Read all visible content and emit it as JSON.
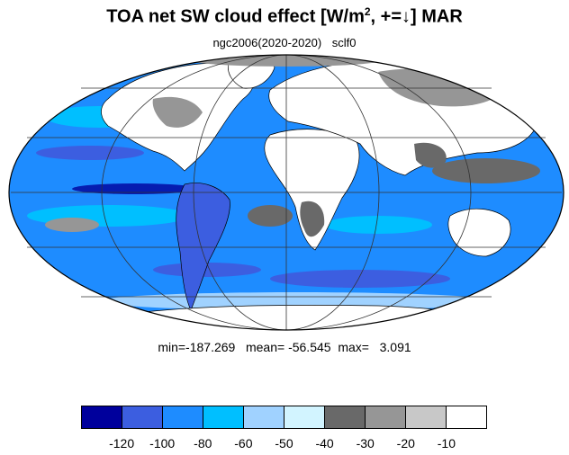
{
  "title": {
    "main": "TOA net SW cloud effect [W/m",
    "sup": "2",
    "rest": ", +=↓]  MAR"
  },
  "subtitle": {
    "left": "ngc2006(2020-2020)",
    "right": "sclf0"
  },
  "stats": {
    "text": "min=-187.269   mean= -56.545  max=   3.091"
  },
  "colorbar": {
    "colors": [
      "#00009c",
      "#3c5ee0",
      "#1e8cff",
      "#00bfff",
      "#a0d2ff",
      "#d2f4ff",
      "#696969",
      "#969696",
      "#c8c8c8",
      "#ffffff"
    ],
    "labels": [
      "-120",
      "-100",
      "-80",
      "-60",
      "-50",
      "-40",
      "-30",
      "-20",
      "-10"
    ]
  },
  "map": {
    "projection": "mollweide",
    "ocean_color": "#1e8cff",
    "land_color": "#ffffff",
    "coast_color": "#000000"
  }
}
